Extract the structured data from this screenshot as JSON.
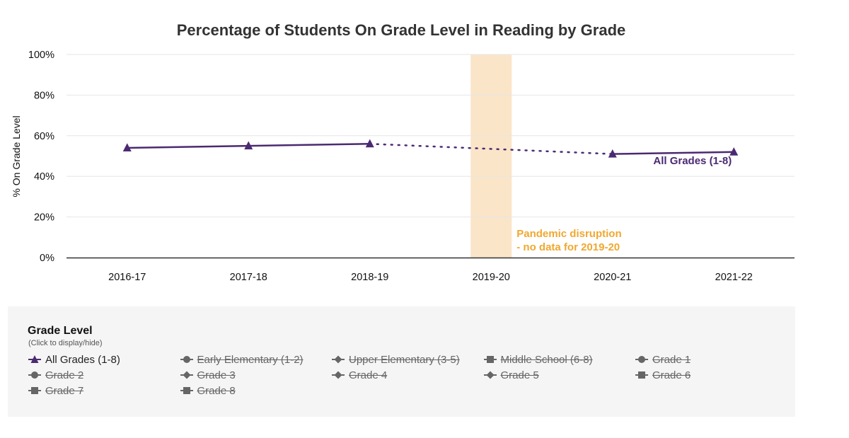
{
  "chart_data": {
    "type": "line",
    "title": "Percentage of Students On Grade Level in Reading by Grade",
    "ylabel": "% On Grade Level",
    "xlabel": "",
    "categories": [
      "2016-17",
      "2017-18",
      "2018-19",
      "2019-20",
      "2020-21",
      "2021-22"
    ],
    "ylim": [
      0,
      100
    ],
    "yticks": [
      0,
      20,
      40,
      60,
      80,
      100
    ],
    "ytick_labels": [
      "0%",
      "20%",
      "40%",
      "60%",
      "80%",
      "100%"
    ],
    "grid": true,
    "series": [
      {
        "name": "All Grades (1-8)",
        "values": [
          54,
          55,
          56,
          null,
          51,
          52
        ],
        "color": "#4b2a72",
        "marker": "triangle",
        "gap_style": "dotted"
      }
    ],
    "annotations": [
      {
        "category": "2019-20",
        "line1": "Pandemic disruption",
        "line2": "- no data for 2019-20",
        "color": "#f0a830",
        "band_color": "#fbe5c8"
      }
    ]
  },
  "legend": {
    "title": "Grade Level",
    "subtitle": "(Click to display/hide)",
    "items": [
      {
        "label": "All Grades (1-8)",
        "marker": "triangle",
        "active": true
      },
      {
        "label": "Early Elementary (1-2)",
        "marker": "circle",
        "active": false
      },
      {
        "label": "Upper Elementary (3-5)",
        "marker": "diamond",
        "active": false
      },
      {
        "label": "Middle School (6-8)",
        "marker": "square",
        "active": false
      },
      {
        "label": "Grade 1",
        "marker": "circle",
        "active": false
      },
      {
        "label": "Grade 2",
        "marker": "circle",
        "active": false
      },
      {
        "label": "Grade 3",
        "marker": "diamond",
        "active": false
      },
      {
        "label": "Grade 4",
        "marker": "diamond",
        "active": false
      },
      {
        "label": "Grade 5",
        "marker": "diamond",
        "active": false
      },
      {
        "label": "Grade 6",
        "marker": "square",
        "active": false
      },
      {
        "label": "Grade 7",
        "marker": "square",
        "active": false
      },
      {
        "label": "Grade 8",
        "marker": "square",
        "active": false
      }
    ]
  },
  "colors": {
    "active_series": "#4b2a72",
    "inactive_marker": "#666666",
    "grid": "#e6e6e6",
    "axis": "#333333",
    "legend_background": "#f5f5f5"
  }
}
